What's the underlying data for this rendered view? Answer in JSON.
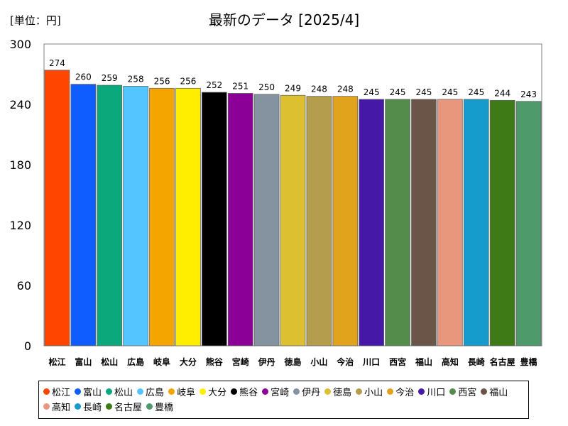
{
  "unit_label": "[単位：円]",
  "chart_data": {
    "type": "bar",
    "title": "最新のデータ [2025/4]",
    "ylim": [
      0,
      300
    ],
    "yticks": [
      0,
      60,
      120,
      180,
      240,
      300
    ],
    "grid": false,
    "legend": "bottom",
    "categories": [
      "松江",
      "富山",
      "松山",
      "広島",
      "岐阜",
      "大分",
      "熊谷",
      "宮崎",
      "伊丹",
      "徳島",
      "小山",
      "今治",
      "川口",
      "西宮",
      "福山",
      "高知",
      "長崎",
      "名古屋",
      "豊橋"
    ],
    "values": [
      274,
      260,
      259,
      258,
      256,
      256,
      252,
      251,
      250,
      249,
      248,
      248,
      245,
      245,
      245,
      245,
      245,
      244,
      243
    ],
    "colors": [
      "#ff4500",
      "#0f5cff",
      "#0aa87a",
      "#55c5ff",
      "#f5a500",
      "#ffee00",
      "#000000",
      "#8b0096",
      "#8592a0",
      "#ddc030",
      "#b49e4e",
      "#e1a31c",
      "#4618a8",
      "#548c4c",
      "#6b5548",
      "#e8977d",
      "#159ccc",
      "#3e7a16",
      "#4e9a6a"
    ]
  }
}
